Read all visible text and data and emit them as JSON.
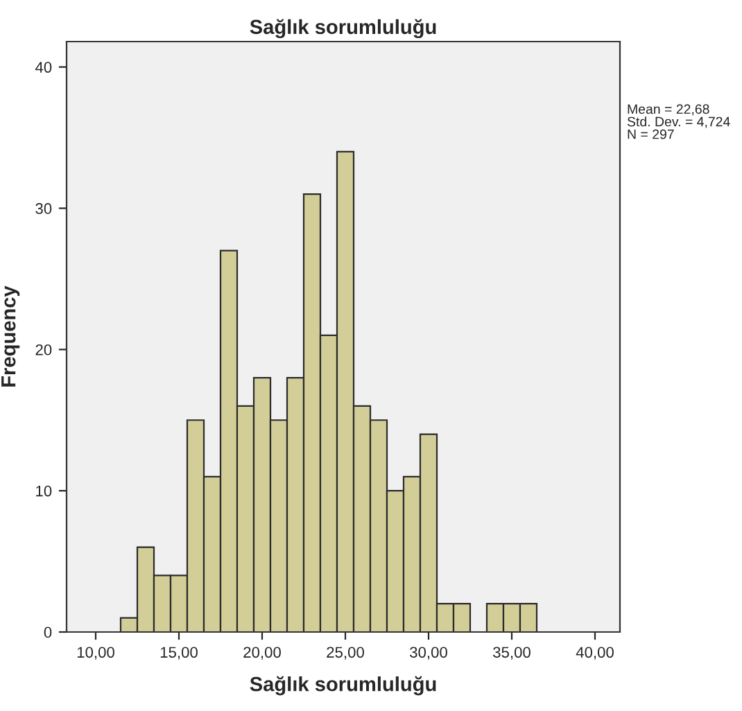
{
  "chart_data": {
    "type": "histogram",
    "title": "Sağlık sorumluluğu",
    "xlabel": "Sağlık sorumluluğu",
    "ylabel": "Frequency",
    "bins": [
      11.5,
      12.5,
      13.5,
      14.5,
      15.5,
      16.5,
      17.5,
      18.5,
      19.5,
      20.5,
      21.5,
      22.5,
      23.5,
      24.5,
      25.5,
      26.5,
      27.5,
      28.5,
      29.5,
      30.5,
      31.5,
      32.5,
      33.5,
      34.5,
      35.5,
      36.5
    ],
    "values": [
      1,
      6,
      4,
      4,
      15,
      11,
      27,
      16,
      18,
      15,
      18,
      31,
      21,
      34,
      16,
      15,
      10,
      11,
      14,
      2,
      2,
      0,
      2,
      2,
      2
    ],
    "color": "#d3ce98",
    "xlim": [
      8.25,
      41.5
    ],
    "ylim": [
      0,
      41.8
    ],
    "xticks": [
      {
        "value": 10,
        "label": "10,00"
      },
      {
        "value": 15,
        "label": "15,00"
      },
      {
        "value": 20,
        "label": "20,00"
      },
      {
        "value": 25,
        "label": "25,00"
      },
      {
        "value": 30,
        "label": "30,00"
      },
      {
        "value": 35,
        "label": "35,00"
      },
      {
        "value": 40,
        "label": "40,00"
      }
    ],
    "yticks": [
      0,
      10,
      20,
      30,
      40
    ],
    "grid": false,
    "legend": false,
    "annotations": [
      "Mean = 22,68\nStd. Dev. = 4,724\nN = 297"
    ]
  }
}
